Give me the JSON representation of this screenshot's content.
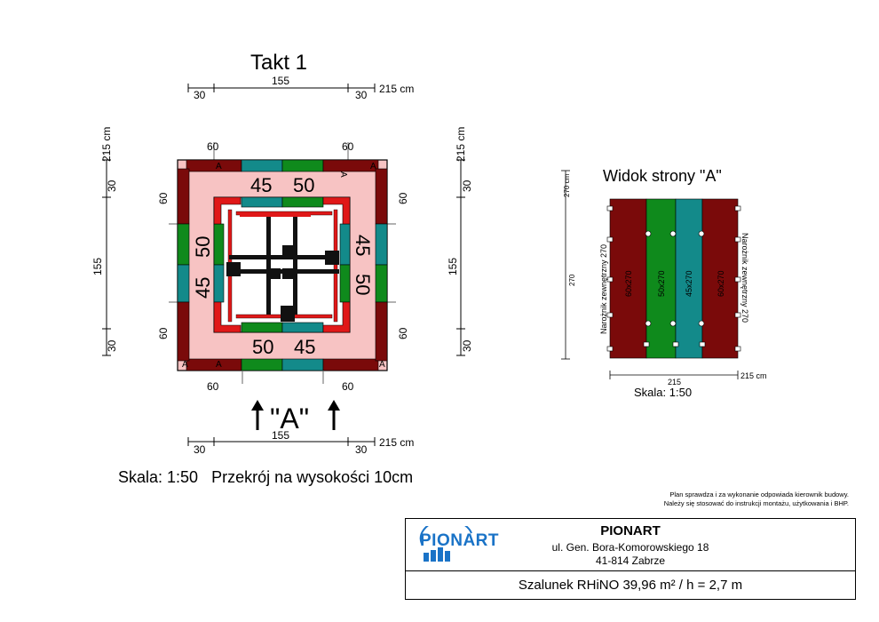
{
  "plan": {
    "title": "Takt 1",
    "top_dims": {
      "left": "30",
      "middle": "155",
      "right": "30",
      "total": "215 cm"
    },
    "bottom_dims": {
      "left": "30",
      "middle": "155",
      "right": "30",
      "total": "215 cm"
    },
    "left_dims": {
      "top": "30",
      "middle": "155",
      "bottom": "30",
      "total": "215 cm"
    },
    "right_dims": {
      "top": "30",
      "middle": "155",
      "bottom": "30",
      "total": "215 cm"
    },
    "corner_labels": {
      "top_left": "60",
      "top_right": "60",
      "bottom_left": "60",
      "bottom_right": "60",
      "left_top": "60",
      "left_bottom": "60",
      "right_top": "60",
      "right_bottom": "60"
    },
    "panels": {
      "top_a": "45",
      "top_b": "50",
      "bottom_a": "50",
      "bottom_b": "45",
      "left_a": "50",
      "left_b": "45",
      "right_a": "45",
      "right_b": "50"
    },
    "marker_a": "A",
    "view_arrow_label": "\"A\"",
    "caption": "Skala: 1:50   Przekrój na wysokości 10cm"
  },
  "side_view": {
    "title": "Widok strony \"A\"",
    "height_top": "270 cm",
    "height_mid": "270",
    "left_corner": "Narożnik zewnętrzny 270",
    "right_corner": "Narożnik zewnętrzny 270",
    "panels": [
      "60x270",
      "50x270",
      "45x270",
      "60x270"
    ],
    "width_label": "215",
    "width_total": "215 cm",
    "scale": "Skala: 1:50"
  },
  "notes": {
    "line1": "Plan sprawdza i za wykonanie odpowiada kierownik budowy.",
    "line2": "Należy się stosować do instrukcji montażu, użytkowania i BHP."
  },
  "title_block": {
    "logo_text": "PIONART",
    "company": "PIONART",
    "address1": "ul. Gen. Bora-Komorowskiego 18",
    "address2": "41-814 Zabrze",
    "description": "Szalunek RHiNO 39,96 m² / h = 2,7 m"
  },
  "colors": {
    "dark_red": "#7a0a0a",
    "green": "#0f8a1c",
    "teal": "#138a8a",
    "pink": "#f7c3c3",
    "red": "#e01818",
    "black": "#111111",
    "brand_blue": "#1a73c7"
  }
}
